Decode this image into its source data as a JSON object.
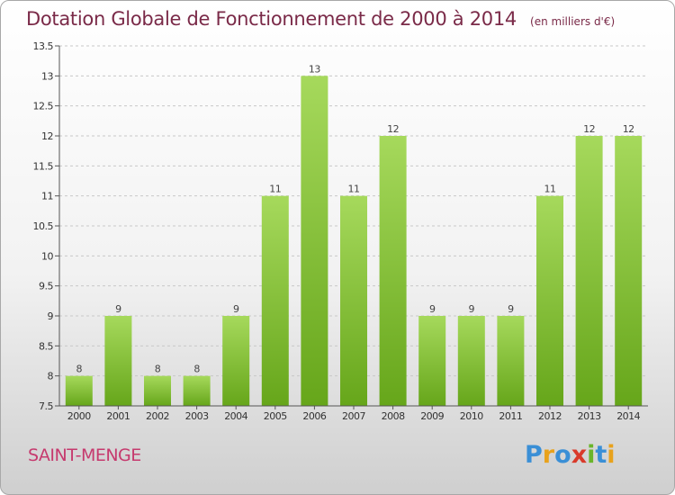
{
  "title": "Dotation Globale de Fonctionnement de 2000 à 2014",
  "subtitle": "(en milliers d'€)",
  "commune": "SAINT-MENGE",
  "logo": {
    "text": "Proxiti",
    "colors": [
      "#3a8fd6",
      "#e8a21c",
      "#3a8fd6",
      "#d93a2a",
      "#6ab52a",
      "#3a8fd6",
      "#e8a21c"
    ]
  },
  "colors": {
    "bar_light": "#a6d95c",
    "bar_dark": "#66a61a",
    "title": "#7a2a48",
    "commune": "#c63a6e"
  },
  "chart_data": {
    "type": "bar",
    "title": "Dotation Globale de Fonctionnement de 2000 à 2014",
    "subtitle": "(en milliers d'€)",
    "categories": [
      "2000",
      "2001",
      "2002",
      "2003",
      "2004",
      "2005",
      "2006",
      "2007",
      "2008",
      "2009",
      "2010",
      "2011",
      "2012",
      "2013",
      "2014"
    ],
    "values": [
      8,
      9,
      8,
      8,
      9,
      11,
      13,
      11,
      12,
      9,
      9,
      9,
      11,
      12,
      12
    ],
    "data_labels": [
      "8",
      "9",
      "8",
      "8",
      "9",
      "11",
      "13",
      "11",
      "12",
      "9",
      "9",
      "9",
      "11",
      "12",
      "12"
    ],
    "ylim": [
      7.5,
      13.5
    ],
    "yticks": [
      7.5,
      8,
      8.5,
      9,
      9.5,
      10,
      10.5,
      11,
      11.5,
      12,
      12.5,
      13,
      13.5
    ],
    "ytick_labels": [
      "7.5",
      "8",
      "8.5",
      "9",
      "9.5",
      "10",
      "10.5",
      "11",
      "11.5",
      "12",
      "12.5",
      "13",
      "13.5"
    ],
    "grid": "horizontal dashed",
    "legend": "none"
  }
}
